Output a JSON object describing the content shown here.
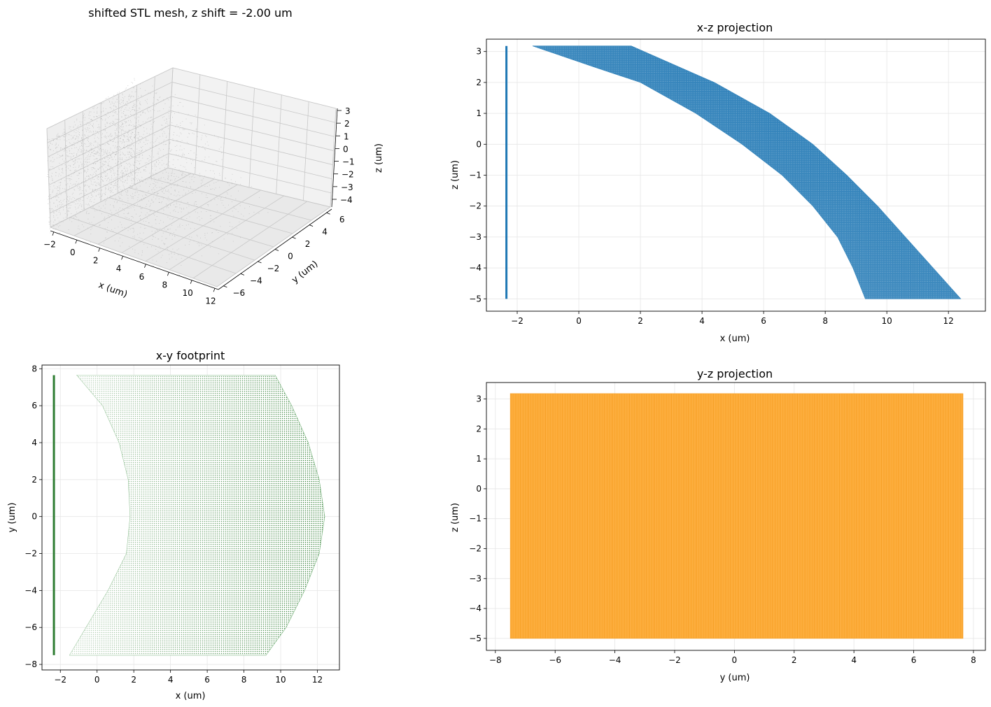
{
  "figure": {
    "panels": [
      {
        "title": "shifted STL mesh, z shift = -2.00 um"
      },
      {
        "title": "x-z projection"
      },
      {
        "title": "x-y footprint"
      },
      {
        "title": "y-z projection"
      }
    ]
  },
  "chart_data": [
    {
      "type": "scatter",
      "projection": "3d",
      "title": "shifted STL mesh, z shift = -2.00 um",
      "xlabel": "x (um)",
      "ylabel": "y (um)",
      "zlabel": "z (um)",
      "xticks": [
        "−2",
        "0",
        "2",
        "4",
        "6",
        "8",
        "10",
        "12"
      ],
      "yticks": [
        "−6",
        "−4",
        "−2",
        "0",
        "2",
        "4",
        "6"
      ],
      "zticks": [
        "3",
        "2",
        "1",
        "0",
        "−1",
        "−2",
        "−3",
        "−4"
      ],
      "marker_color": "#a6a6a6",
      "grid": true
    },
    {
      "type": "scatter",
      "title": "x-z projection",
      "xlabel": "x (um)",
      "ylabel": "z (um)",
      "xlim": [
        -3.0,
        13.2
      ],
      "ylim": [
        -5.4,
        3.4
      ],
      "xticks": [
        -2,
        0,
        2,
        4,
        6,
        8,
        10,
        12
      ],
      "yticks": [
        -5,
        -4,
        -3,
        -2,
        -1,
        0,
        1,
        2,
        3
      ],
      "xtick_labels": [
        "−2",
        "0",
        "2",
        "4",
        "6",
        "8",
        "10",
        "12"
      ],
      "ytick_labels": [
        "−5",
        "−4",
        "−3",
        "−2",
        "−1",
        "0",
        "1",
        "2",
        "3"
      ],
      "color": "#1f77b4",
      "line_segment": {
        "x": -2.35,
        "z": [
          -5.0,
          3.18
        ]
      },
      "region_upper_edge": {
        "z": [
          3.18,
          2.0,
          1.0,
          0.0,
          -1.0,
          -2.0,
          -3.0,
          -4.0,
          -5.0
        ],
        "x": [
          1.7,
          4.4,
          6.2,
          7.6,
          8.7,
          9.7,
          10.6,
          11.5,
          12.4
        ]
      },
      "region_lower_edge": {
        "z": [
          3.18,
          2.5,
          2.0,
          1.0,
          0.0,
          -1.0,
          -2.0,
          -3.0,
          -4.0,
          -5.0
        ],
        "x": [
          -1.5,
          0.5,
          2.0,
          3.8,
          5.3,
          6.6,
          7.6,
          8.4,
          8.9,
          9.3
        ]
      },
      "grid": true
    },
    {
      "type": "scatter",
      "title": "x-y footprint",
      "xlabel": "x (um)",
      "ylabel": "y (um)",
      "xlim": [
        -3.0,
        13.2
      ],
      "ylim": [
        -8.3,
        8.2
      ],
      "xticks": [
        -2,
        0,
        2,
        4,
        6,
        8,
        10,
        12
      ],
      "yticks": [
        -8,
        -6,
        -4,
        -2,
        0,
        2,
        4,
        6,
        8
      ],
      "xtick_labels": [
        "−2",
        "0",
        "2",
        "4",
        "6",
        "8",
        "10",
        "12"
      ],
      "ytick_labels": [
        "−8",
        "−6",
        "−4",
        "−2",
        "0",
        "2",
        "4",
        "6",
        "8"
      ],
      "color": "#2e7d32",
      "line_segment": {
        "x": -2.35,
        "y": [
          -7.5,
          7.65
        ]
      },
      "region_left_edge": {
        "y": [
          7.65,
          6.0,
          4.0,
          2.0,
          0.0,
          -2.0,
          -4.0,
          -6.0,
          -7.5
        ],
        "x": [
          -1.1,
          0.3,
          1.2,
          1.7,
          1.8,
          1.6,
          0.6,
          -0.6,
          -1.5
        ]
      },
      "region_right_edge": {
        "y": [
          7.65,
          6.0,
          4.0,
          2.0,
          0.0,
          -2.0,
          -4.0,
          -6.0,
          -7.5
        ],
        "x": [
          9.7,
          10.6,
          11.5,
          12.1,
          12.4,
          12.1,
          11.3,
          10.3,
          9.2
        ]
      },
      "grid": true
    },
    {
      "type": "scatter",
      "title": "y-z projection",
      "xlabel": "y (um)",
      "ylabel": "z (um)",
      "xlim": [
        -8.3,
        8.4
      ],
      "ylim": [
        -5.4,
        3.55
      ],
      "xticks": [
        -8,
        -6,
        -4,
        -2,
        0,
        2,
        4,
        6,
        8
      ],
      "yticks": [
        -5,
        -4,
        -3,
        -2,
        -1,
        0,
        1,
        2,
        3
      ],
      "xtick_labels": [
        "−8",
        "−6",
        "−4",
        "−2",
        "0",
        "2",
        "4",
        "6",
        "8"
      ],
      "ytick_labels": [
        "−5",
        "−4",
        "−3",
        "−2",
        "−1",
        "0",
        "1",
        "2",
        "3"
      ],
      "color": "#ff9f1c",
      "region": {
        "y": [
          -7.5,
          7.65
        ],
        "z": [
          -5.0,
          3.18
        ]
      },
      "grid": true
    }
  ]
}
